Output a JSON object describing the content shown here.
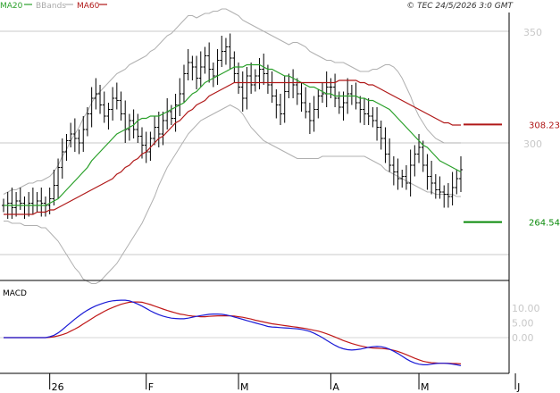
{
  "header": {
    "legend": [
      {
        "label": "MA20",
        "color": "#2aa02a"
      },
      {
        "label": "BBands",
        "color": "#aaaaaa"
      },
      {
        "label": "MA60",
        "color": "#b01818"
      }
    ],
    "copyright": "© TEC 24/5/2026 3:0 GMT"
  },
  "colors": {
    "price": "#000000",
    "ma20": "#2aa02a",
    "bbands": "#b0b0b0",
    "ma60": "#b01818",
    "macd": "#1a1ad6",
    "signal": "#c01818",
    "grid": "#c8c8c8"
  },
  "chart_data": [
    {
      "type": "line",
      "title": "",
      "y_ticks": [
        "350",
        "300"
      ],
      "ylim": [
        230,
        360
      ],
      "x_ticks": [
        "26",
        "F",
        "M",
        "A",
        "M",
        "J"
      ],
      "levels": [
        {
          "label": "308.23",
          "value": 308.23,
          "color": "#b01818"
        },
        {
          "label": "264.54",
          "value": 264.54,
          "color": "#0a8a0a"
        }
      ],
      "close": [
        272,
        273,
        271,
        274,
        273,
        272,
        273,
        272,
        274,
        273,
        272,
        275,
        281,
        289,
        296,
        301,
        304,
        302,
        300,
        306,
        313,
        320,
        322,
        317,
        312,
        315,
        320,
        319,
        313,
        306,
        310,
        306,
        303,
        299,
        296,
        302,
        307,
        304,
        310,
        314,
        311,
        317,
        322,
        331,
        336,
        334,
        329,
        334,
        339,
        333,
        330,
        337,
        341,
        343,
        338,
        331,
        325,
        320,
        330,
        326,
        330,
        333,
        331,
        326,
        321,
        317,
        313,
        323,
        327,
        326,
        322,
        318,
        314,
        310,
        315,
        321,
        322,
        325,
        325,
        320,
        316,
        318,
        322,
        321,
        318,
        315,
        313,
        312,
        310,
        307,
        302,
        295,
        290,
        287,
        284,
        285,
        282,
        290,
        295,
        298,
        290,
        285,
        282,
        279,
        278,
        277,
        276,
        280,
        284,
        288
      ],
      "bb_upper": [
        277,
        278,
        279,
        279,
        280,
        281,
        282,
        282,
        283,
        283,
        284,
        285,
        287,
        290,
        294,
        297,
        301,
        304,
        307,
        311,
        314,
        318,
        321,
        323,
        325,
        327,
        329,
        331,
        332,
        333,
        335,
        336,
        337,
        338,
        339,
        341,
        342,
        344,
        346,
        348,
        349,
        351,
        353,
        355,
        357,
        357,
        356,
        357,
        358,
        358,
        359,
        359,
        360,
        360,
        359,
        358,
        357,
        355,
        354,
        353,
        352,
        351,
        350,
        349,
        348,
        347,
        346,
        345,
        344,
        345,
        345,
        344,
        343,
        341,
        340,
        339,
        338,
        337,
        337,
        336,
        336,
        336,
        335,
        334,
        333,
        332,
        332,
        332,
        333,
        333,
        334,
        335,
        335,
        334,
        332,
        329,
        325,
        321,
        316,
        312,
        309,
        306,
        304,
        302,
        301,
        300,
        300,
        300,
        300,
        300
      ],
      "bb_lower": [
        265,
        265,
        264,
        264,
        264,
        263,
        263,
        263,
        263,
        262,
        262,
        260,
        258,
        256,
        253,
        250,
        247,
        244,
        242,
        239,
        238,
        237,
        237,
        238,
        240,
        242,
        244,
        246,
        249,
        252,
        255,
        258,
        261,
        264,
        268,
        272,
        276,
        281,
        285,
        289,
        292,
        295,
        298,
        301,
        304,
        306,
        308,
        310,
        311,
        312,
        313,
        314,
        315,
        316,
        317,
        316,
        315,
        313,
        310,
        307,
        305,
        303,
        301,
        300,
        299,
        298,
        297,
        296,
        295,
        294,
        293,
        293,
        293,
        293,
        293,
        293,
        294,
        294,
        294,
        294,
        294,
        294,
        294,
        294,
        294,
        294,
        294,
        293,
        292,
        291,
        290,
        288,
        287,
        286,
        285,
        284,
        283,
        282,
        281,
        280,
        279,
        278,
        278,
        277,
        277,
        277,
        277,
        277,
        276,
        276
      ],
      "ma20": [
        272,
        272,
        272,
        272,
        272,
        272,
        272,
        272,
        272,
        272,
        272,
        273,
        274,
        275,
        277,
        279,
        281,
        283,
        285,
        287,
        289,
        292,
        294,
        296,
        298,
        300,
        302,
        304,
        305,
        306,
        307,
        308,
        310,
        311,
        311,
        312,
        312,
        312,
        313,
        314,
        315,
        316,
        317,
        318,
        320,
        322,
        323,
        325,
        327,
        328,
        329,
        330,
        331,
        332,
        333,
        334,
        334,
        334,
        335,
        335,
        335,
        335,
        334,
        333,
        333,
        332,
        331,
        330,
        330,
        329,
        328,
        327,
        326,
        325,
        325,
        324,
        323,
        322,
        322,
        321,
        321,
        321,
        321,
        321,
        321,
        320,
        320,
        319,
        319,
        318,
        317,
        316,
        315,
        313,
        311,
        309,
        307,
        305,
        303,
        301,
        299,
        298,
        296,
        294,
        292,
        291,
        290,
        289,
        288,
        287
      ],
      "ma60": [
        268,
        268,
        268,
        268,
        268,
        268,
        268,
        268,
        269,
        269,
        269,
        270,
        270,
        271,
        272,
        273,
        274,
        275,
        276,
        277,
        278,
        279,
        280,
        281,
        282,
        283,
        284,
        286,
        287,
        289,
        290,
        292,
        293,
        295,
        296,
        298,
        300,
        302,
        303,
        305,
        307,
        309,
        310,
        312,
        314,
        315,
        317,
        318,
        319,
        321,
        322,
        323,
        324,
        325,
        326,
        327,
        327,
        327,
        327,
        327,
        327,
        327,
        327,
        327,
        327,
        327,
        327,
        327,
        327,
        327,
        327,
        327,
        327,
        327,
        327,
        327,
        327,
        327,
        327,
        327,
        328,
        328,
        328,
        328,
        328,
        327,
        327,
        326,
        326,
        325,
        324,
        323,
        322,
        321,
        320,
        319,
        318,
        317,
        316,
        315,
        314,
        313,
        312,
        311,
        310,
        309,
        309,
        308,
        308,
        308
      ]
    },
    {
      "type": "line",
      "title": "MACD",
      "y_ticks": [
        "10.00",
        "5.00",
        "0.00"
      ],
      "ylim": [
        -15,
        20
      ],
      "macd": [
        0,
        0,
        0,
        0,
        0,
        0,
        0,
        0,
        0,
        0,
        0,
        0.3,
        0.8,
        1.6,
        2.7,
        3.9,
        5.1,
        6.3,
        7.4,
        8.4,
        9.3,
        10.1,
        10.8,
        11.3,
        11.8,
        12.2,
        12.5,
        12.6,
        12.7,
        12.7,
        12.5,
        12.0,
        11.4,
        10.7,
        9.9,
        9.1,
        8.4,
        7.8,
        7.3,
        6.9,
        6.6,
        6.5,
        6.4,
        6.4,
        6.6,
        6.9,
        7.2,
        7.5,
        7.7,
        7.9,
        8.0,
        8.0,
        7.9,
        7.7,
        7.4,
        7.0,
        6.6,
        6.2,
        5.8,
        5.4,
        5.0,
        4.6,
        4.2,
        3.8,
        3.6,
        3.5,
        3.4,
        3.3,
        3.2,
        3.1,
        3.0,
        2.8,
        2.5,
        2.1,
        1.5,
        0.8,
        0.0,
        -0.9,
        -1.8,
        -2.6,
        -3.3,
        -3.8,
        -4.1,
        -4.2,
        -4.1,
        -3.9,
        -3.6,
        -3.3,
        -3.1,
        -3.0,
        -3.1,
        -3.4,
        -3.9,
        -4.6,
        -5.4,
        -6.3,
        -7.2,
        -8.0,
        -8.6,
        -9.0,
        -9.2,
        -9.2,
        -9.0,
        -8.8,
        -8.7,
        -8.7,
        -8.8,
        -9.0,
        -9.2,
        -9.5
      ],
      "signal": [
        0,
        0,
        0,
        0,
        0,
        0,
        0,
        0,
        0,
        0,
        0,
        0.1,
        0.3,
        0.6,
        1.0,
        1.5,
        2.2,
        2.9,
        3.7,
        4.6,
        5.5,
        6.4,
        7.3,
        8.1,
        8.9,
        9.6,
        10.2,
        10.8,
        11.3,
        11.7,
        12.0,
        12.1,
        12.1,
        12.0,
        11.6,
        11.2,
        10.7,
        10.2,
        9.7,
        9.2,
        8.8,
        8.4,
        8.0,
        7.8,
        7.5,
        7.3,
        7.2,
        7.1,
        7.1,
        7.2,
        7.3,
        7.4,
        7.4,
        7.4,
        7.4,
        7.3,
        7.1,
        6.9,
        6.6,
        6.3,
        5.9,
        5.6,
        5.3,
        5.0,
        4.7,
        4.5,
        4.3,
        4.1,
        3.9,
        3.7,
        3.5,
        3.3,
        3.1,
        2.8,
        2.5,
        2.2,
        1.8,
        1.3,
        0.8,
        0.2,
        -0.4,
        -1.0,
        -1.5,
        -2.0,
        -2.4,
        -2.8,
        -3.1,
        -3.4,
        -3.5,
        -3.6,
        -3.7,
        -3.8,
        -4.0,
        -4.3,
        -4.7,
        -5.2,
        -5.8,
        -6.4,
        -7.0,
        -7.5,
        -8.0,
        -8.3,
        -8.5,
        -8.6,
        -8.7,
        -8.7,
        -8.7,
        -8.8,
        -8.8,
        -8.9
      ]
    }
  ]
}
